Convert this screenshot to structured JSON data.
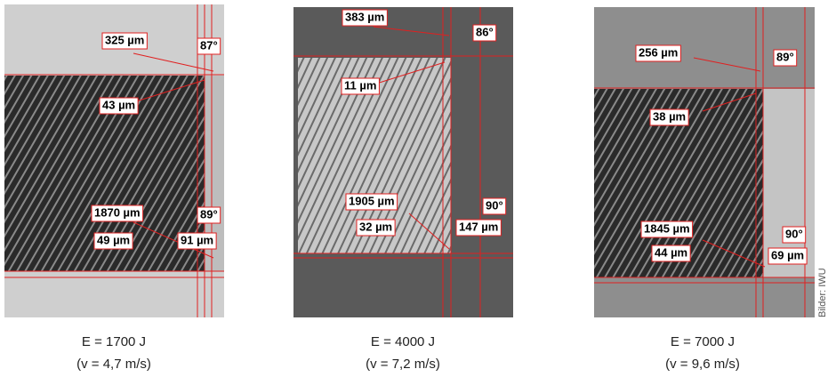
{
  "panels": [
    {
      "labels": [
        "325 µm",
        "87°",
        "43 µm",
        "1870 µm",
        "89°",
        "49 µm",
        "91 µm"
      ],
      "caption": [
        "E = 1700 J",
        "(v = 4,7 m/s)"
      ]
    },
    {
      "labels": [
        "383 µm",
        "86°",
        "11 µm",
        "1905 µm",
        "90°",
        "32 µm",
        "147 µm"
      ],
      "caption": [
        "E = 4000 J",
        "(v = 7,2 m/s)"
      ]
    },
    {
      "labels": [
        "256 µm",
        "89°",
        "38 µm",
        "1845 µm",
        "90°",
        "44 µm",
        "69 µm"
      ],
      "caption": [
        "E = 7000 J",
        "(v = 9,6 m/s)"
      ]
    }
  ],
  "credit": "Bilder: IWU"
}
